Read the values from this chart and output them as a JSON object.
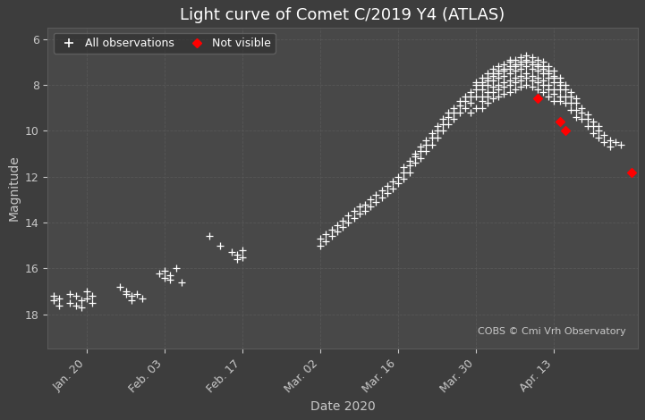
{
  "title": "Light curve of Comet C/2019 Y4 (ATLAS)",
  "xlabel": "Date 2020",
  "ylabel": "Magnitude",
  "background_color": "#3d3d3d",
  "axes_background_color": "#484848",
  "grid_color": "#5a5a5a",
  "text_color": "#c8c8c8",
  "white_color": "#ffffff",
  "annotation_text": "COBS © Cmi Vrh Observatory",
  "ylim": [
    19.5,
    5.5
  ],
  "yticks": [
    6,
    8,
    10,
    12,
    14,
    16,
    18
  ],
  "title_fontsize": 13,
  "label_fontsize": 10,
  "tick_fontsize": 9,
  "xlim": [
    13,
    119
  ],
  "xtick_days": [
    20,
    34,
    48,
    62,
    76,
    90,
    104
  ],
  "xtick_labels": [
    "Jan. 20",
    "Feb. 03",
    "Feb. 17",
    "Mar. 02",
    "Mar. 16",
    "Mar. 30",
    "Apr. 13"
  ],
  "obs_all": [
    [
      14,
      17.2
    ],
    [
      14,
      17.4
    ],
    [
      15,
      17.3
    ],
    [
      15,
      17.6
    ],
    [
      17,
      17.1
    ],
    [
      17,
      17.5
    ],
    [
      18,
      17.2
    ],
    [
      18,
      17.6
    ],
    [
      19,
      17.4
    ],
    [
      19,
      17.7
    ],
    [
      20,
      17.0
    ],
    [
      20,
      17.3
    ],
    [
      21,
      17.2
    ],
    [
      21,
      17.5
    ],
    [
      26,
      16.8
    ],
    [
      27,
      17.1
    ],
    [
      27,
      17.0
    ],
    [
      28,
      17.2
    ],
    [
      28,
      17.4
    ],
    [
      29,
      17.1
    ],
    [
      30,
      17.3
    ],
    [
      33,
      16.2
    ],
    [
      34,
      16.1
    ],
    [
      34,
      16.4
    ],
    [
      35,
      16.3
    ],
    [
      35,
      16.5
    ],
    [
      36,
      16.0
    ],
    [
      37,
      16.6
    ],
    [
      42,
      14.6
    ],
    [
      44,
      15.0
    ],
    [
      46,
      15.3
    ],
    [
      47,
      15.4
    ],
    [
      47,
      15.6
    ],
    [
      48,
      15.2
    ],
    [
      48,
      15.5
    ],
    [
      62,
      15.0
    ],
    [
      62,
      14.7
    ],
    [
      63,
      14.5
    ],
    [
      63,
      14.8
    ],
    [
      64,
      14.3
    ],
    [
      64,
      14.6
    ],
    [
      65,
      14.1
    ],
    [
      65,
      14.4
    ],
    [
      66,
      13.9
    ],
    [
      66,
      14.2
    ],
    [
      67,
      13.7
    ],
    [
      67,
      14.0
    ],
    [
      68,
      13.5
    ],
    [
      68,
      13.8
    ],
    [
      69,
      13.3
    ],
    [
      69,
      13.6
    ],
    [
      70,
      13.2
    ],
    [
      70,
      13.5
    ],
    [
      71,
      13.0
    ],
    [
      71,
      13.3
    ],
    [
      72,
      12.8
    ],
    [
      72,
      13.1
    ],
    [
      73,
      12.6
    ],
    [
      73,
      12.9
    ],
    [
      74,
      12.4
    ],
    [
      74,
      12.7
    ],
    [
      75,
      12.2
    ],
    [
      75,
      12.5
    ],
    [
      76,
      12.0
    ],
    [
      76,
      12.3
    ],
    [
      77,
      11.8
    ],
    [
      77,
      12.1
    ],
    [
      77,
      11.6
    ],
    [
      78,
      11.5
    ],
    [
      78,
      11.8
    ],
    [
      78,
      11.3
    ],
    [
      79,
      11.1
    ],
    [
      79,
      11.4
    ],
    [
      79,
      11.0
    ],
    [
      80,
      10.9
    ],
    [
      80,
      11.2
    ],
    [
      80,
      10.7
    ],
    [
      81,
      10.6
    ],
    [
      81,
      10.9
    ],
    [
      81,
      10.4
    ],
    [
      82,
      10.3
    ],
    [
      82,
      10.6
    ],
    [
      82,
      10.1
    ],
    [
      83,
      10.0
    ],
    [
      83,
      10.3
    ],
    [
      83,
      9.8
    ],
    [
      84,
      9.7
    ],
    [
      84,
      10.0
    ],
    [
      84,
      9.5
    ],
    [
      85,
      9.4
    ],
    [
      85,
      9.7
    ],
    [
      85,
      9.2
    ],
    [
      86,
      9.2
    ],
    [
      86,
      9.5
    ],
    [
      86,
      9.0
    ],
    [
      87,
      8.9
    ],
    [
      87,
      9.2
    ],
    [
      87,
      8.7
    ],
    [
      88,
      8.7
    ],
    [
      88,
      9.0
    ],
    [
      88,
      8.5
    ],
    [
      89,
      8.5
    ],
    [
      89,
      8.8
    ],
    [
      89,
      8.3
    ],
    [
      89,
      9.2
    ],
    [
      90,
      8.2
    ],
    [
      90,
      8.5
    ],
    [
      90,
      8.0
    ],
    [
      90,
      9.0
    ],
    [
      90,
      7.9
    ],
    [
      91,
      7.9
    ],
    [
      91,
      8.2
    ],
    [
      91,
      7.7
    ],
    [
      91,
      8.7
    ],
    [
      91,
      8.0
    ],
    [
      91,
      8.5
    ],
    [
      91,
      9.0
    ],
    [
      92,
      7.7
    ],
    [
      92,
      8.0
    ],
    [
      92,
      7.5
    ],
    [
      92,
      8.5
    ],
    [
      92,
      7.8
    ],
    [
      92,
      8.3
    ],
    [
      92,
      8.8
    ],
    [
      93,
      7.5
    ],
    [
      93,
      7.8
    ],
    [
      93,
      7.3
    ],
    [
      93,
      8.3
    ],
    [
      93,
      7.6
    ],
    [
      93,
      8.1
    ],
    [
      93,
      8.6
    ],
    [
      94,
      7.4
    ],
    [
      94,
      7.7
    ],
    [
      94,
      7.2
    ],
    [
      94,
      8.2
    ],
    [
      94,
      7.5
    ],
    [
      94,
      8.0
    ],
    [
      94,
      8.5
    ],
    [
      95,
      7.3
    ],
    [
      95,
      7.6
    ],
    [
      95,
      7.1
    ],
    [
      95,
      8.1
    ],
    [
      95,
      7.4
    ],
    [
      95,
      7.9
    ],
    [
      95,
      8.4
    ],
    [
      96,
      7.2
    ],
    [
      96,
      7.5
    ],
    [
      96,
      7.0
    ],
    [
      96,
      8.0
    ],
    [
      96,
      7.3
    ],
    [
      96,
      7.8
    ],
    [
      96,
      8.3
    ],
    [
      96,
      6.9
    ],
    [
      97,
      7.1
    ],
    [
      97,
      7.4
    ],
    [
      97,
      6.9
    ],
    [
      97,
      7.9
    ],
    [
      97,
      7.2
    ],
    [
      97,
      7.7
    ],
    [
      97,
      8.2
    ],
    [
      98,
      7.0
    ],
    [
      98,
      7.3
    ],
    [
      98,
      6.8
    ],
    [
      98,
      7.8
    ],
    [
      98,
      7.1
    ],
    [
      98,
      7.6
    ],
    [
      98,
      8.1
    ],
    [
      99,
      6.9
    ],
    [
      99,
      7.2
    ],
    [
      99,
      6.7
    ],
    [
      99,
      7.7
    ],
    [
      99,
      7.0
    ],
    [
      99,
      7.5
    ],
    [
      99,
      8.0
    ],
    [
      100,
      7.0
    ],
    [
      100,
      7.3
    ],
    [
      100,
      6.8
    ],
    [
      100,
      7.8
    ],
    [
      100,
      7.1
    ],
    [
      100,
      7.6
    ],
    [
      100,
      8.1
    ],
    [
      101,
      7.1
    ],
    [
      101,
      7.4
    ],
    [
      101,
      6.9
    ],
    [
      101,
      7.9
    ],
    [
      101,
      7.2
    ],
    [
      101,
      7.7
    ],
    [
      101,
      8.2
    ],
    [
      102,
      7.2
    ],
    [
      102,
      7.5
    ],
    [
      102,
      7.0
    ],
    [
      102,
      8.0
    ],
    [
      102,
      7.3
    ],
    [
      102,
      7.8
    ],
    [
      102,
      8.3
    ],
    [
      103,
      7.4
    ],
    [
      103,
      7.7
    ],
    [
      103,
      7.2
    ],
    [
      103,
      8.2
    ],
    [
      103,
      7.5
    ],
    [
      103,
      8.0
    ],
    [
      103,
      8.5
    ],
    [
      104,
      7.6
    ],
    [
      104,
      7.9
    ],
    [
      104,
      7.4
    ],
    [
      104,
      8.4
    ],
    [
      104,
      7.7
    ],
    [
      104,
      8.2
    ],
    [
      104,
      8.7
    ],
    [
      105,
      7.9
    ],
    [
      105,
      8.2
    ],
    [
      105,
      7.7
    ],
    [
      105,
      8.7
    ],
    [
      105,
      8.0
    ],
    [
      105,
      8.5
    ],
    [
      106,
      8.2
    ],
    [
      106,
      8.5
    ],
    [
      106,
      8.0
    ],
    [
      106,
      8.8
    ],
    [
      107,
      8.5
    ],
    [
      107,
      8.8
    ],
    [
      107,
      8.3
    ],
    [
      107,
      9.1
    ],
    [
      108,
      8.8
    ],
    [
      108,
      9.1
    ],
    [
      108,
      8.6
    ],
    [
      108,
      9.4
    ],
    [
      109,
      9.2
    ],
    [
      109,
      9.5
    ],
    [
      109,
      9.0
    ],
    [
      110,
      9.5
    ],
    [
      110,
      9.8
    ],
    [
      110,
      9.3
    ],
    [
      111,
      9.8
    ],
    [
      111,
      10.1
    ],
    [
      111,
      9.6
    ],
    [
      112,
      10.0
    ],
    [
      112,
      10.3
    ],
    [
      112,
      9.8
    ],
    [
      113,
      10.2
    ],
    [
      113,
      10.5
    ],
    [
      114,
      10.4
    ],
    [
      114,
      10.7
    ],
    [
      115,
      10.5
    ],
    [
      116,
      10.6
    ],
    [
      118,
      11.8
    ]
  ],
  "obs_not_visible": [
    [
      101,
      8.6
    ],
    [
      105,
      9.6
    ],
    [
      106,
      10.0
    ],
    [
      118,
      11.8
    ]
  ]
}
